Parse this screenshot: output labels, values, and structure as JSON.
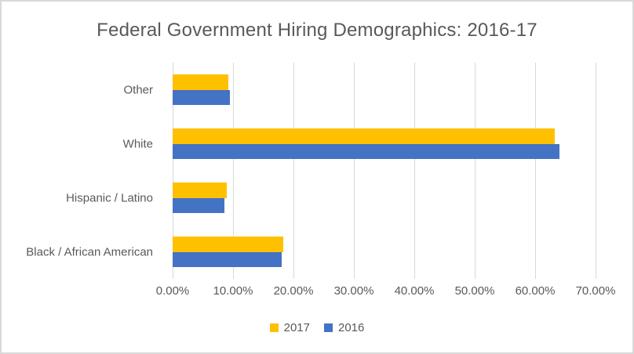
{
  "frame": {
    "border_color": "#D9D9D9",
    "background": "#FFFFFF"
  },
  "chart_data": {
    "type": "bar",
    "orientation": "horizontal",
    "title": "Federal Government Hiring Demographics: 2016-17",
    "categories": [
      "Other",
      "White",
      "Hispanic / Latino",
      "Black / African American"
    ],
    "series": [
      {
        "name": "2017",
        "color": "#FFC000",
        "values": [
          9.2,
          63.2,
          9.0,
          18.3
        ]
      },
      {
        "name": "2016",
        "color": "#4472C4",
        "values": [
          9.5,
          64.0,
          8.6,
          18.0
        ]
      }
    ],
    "x_axis": {
      "min": 0,
      "max": 70,
      "tick_step": 10,
      "tick_labels": [
        "0.00%",
        "10.00%",
        "20.00%",
        "30.00%",
        "40.00%",
        "50.00%",
        "60.00%",
        "70.00%"
      ]
    },
    "grid": true,
    "legend_position": "bottom",
    "colors": {
      "text": "#595959",
      "gridline": "#D9D9D9"
    }
  }
}
